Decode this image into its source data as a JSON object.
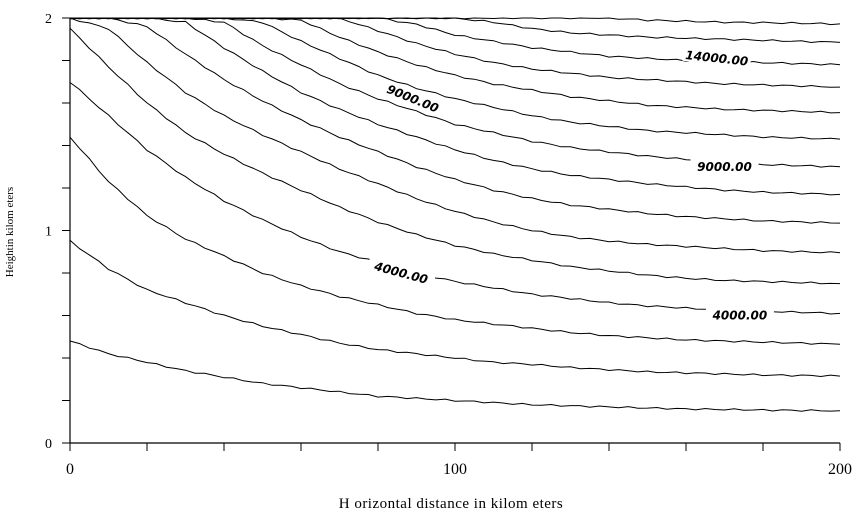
{
  "chart_data": {
    "type": "contour",
    "title": "",
    "xlabel": "H orizontal distance in kilom eters",
    "ylabel": "Heightin kilom eters",
    "xlim": [
      0,
      200
    ],
    "ylim": [
      0,
      2
    ],
    "x_tick_labels": [
      {
        "value": 0,
        "label": "0"
      },
      {
        "value": 100,
        "label": "100"
      },
      {
        "value": 200,
        "label": "200"
      }
    ],
    "y_tick_labels": [
      {
        "value": 0,
        "label": "0"
      },
      {
        "value": 1,
        "label": "1"
      },
      {
        "value": 2,
        "label": "2"
      }
    ],
    "x_minor_step": 20,
    "y_minor_step": 0.2,
    "grid": false,
    "contour_x": [
      0,
      10,
      20,
      30,
      40,
      50,
      60,
      70,
      80,
      90,
      100,
      110,
      120,
      130,
      140,
      150,
      160,
      170,
      180,
      190,
      200
    ],
    "contours": [
      {
        "y": [
          0.48,
          0.42,
          0.38,
          0.34,
          0.31,
          0.28,
          0.26,
          0.24,
          0.22,
          0.21,
          0.2,
          0.19,
          0.18,
          0.175,
          0.17,
          0.165,
          0.16,
          0.158,
          0.155,
          0.153,
          0.152
        ]
      },
      {
        "y": [
          0.95,
          0.82,
          0.72,
          0.66,
          0.6,
          0.55,
          0.51,
          0.47,
          0.44,
          0.42,
          0.4,
          0.38,
          0.37,
          0.355,
          0.345,
          0.335,
          0.33,
          0.325,
          0.32,
          0.318,
          0.315
        ]
      },
      {
        "y": [
          1.44,
          1.23,
          1.07,
          0.96,
          0.88,
          0.8,
          0.74,
          0.69,
          0.65,
          0.61,
          0.58,
          0.56,
          0.54,
          0.52,
          0.505,
          0.495,
          0.485,
          0.48,
          0.475,
          0.47,
          0.465
        ]
      },
      {
        "y": [
          1.7,
          1.54,
          1.38,
          1.25,
          1.14,
          1.05,
          0.97,
          0.9,
          0.85,
          0.8,
          0.76,
          0.73,
          0.7,
          0.68,
          0.66,
          0.645,
          0.635,
          0.625,
          0.62,
          0.615,
          0.61
        ]
      },
      {
        "y": [
          1.95,
          1.77,
          1.6,
          1.46,
          1.36,
          1.27,
          1.19,
          1.11,
          1.04,
          0.98,
          0.93,
          0.89,
          0.86,
          0.83,
          0.81,
          0.79,
          0.775,
          0.765,
          0.76,
          0.755,
          0.75
        ]
      },
      {
        "y": [
          2.0,
          1.95,
          1.79,
          1.65,
          1.54,
          1.45,
          1.37,
          1.29,
          1.22,
          1.15,
          1.09,
          1.04,
          1.0,
          0.97,
          0.95,
          0.935,
          0.925,
          0.915,
          0.905,
          0.9,
          0.895
        ]
      },
      {
        "y": [
          2.0,
          2.0,
          1.96,
          1.83,
          1.71,
          1.61,
          1.52,
          1.44,
          1.37,
          1.3,
          1.24,
          1.19,
          1.15,
          1.12,
          1.1,
          1.08,
          1.065,
          1.055,
          1.045,
          1.04,
          1.035
        ]
      },
      {
        "y": [
          2.0,
          2.0,
          2.0,
          1.98,
          1.86,
          1.75,
          1.65,
          1.57,
          1.5,
          1.44,
          1.38,
          1.33,
          1.29,
          1.26,
          1.24,
          1.22,
          1.205,
          1.19,
          1.18,
          1.175,
          1.17
        ]
      },
      {
        "y": [
          2.0,
          2.0,
          2.0,
          2.0,
          1.98,
          1.87,
          1.78,
          1.69,
          1.62,
          1.56,
          1.5,
          1.46,
          1.42,
          1.39,
          1.37,
          1.35,
          1.335,
          1.32,
          1.31,
          1.305,
          1.3
        ]
      },
      {
        "y": [
          2.0,
          2.0,
          2.0,
          2.0,
          2.0,
          1.98,
          1.89,
          1.81,
          1.73,
          1.67,
          1.62,
          1.58,
          1.54,
          1.51,
          1.49,
          1.47,
          1.46,
          1.45,
          1.44,
          1.435,
          1.43
        ]
      },
      {
        "y": [
          2.0,
          2.0,
          2.0,
          2.0,
          2.0,
          2.0,
          1.99,
          1.91,
          1.84,
          1.78,
          1.73,
          1.69,
          1.66,
          1.63,
          1.61,
          1.59,
          1.58,
          1.57,
          1.565,
          1.56,
          1.555
        ]
      },
      {
        "y": [
          2.0,
          2.0,
          2.0,
          2.0,
          2.0,
          2.0,
          2.0,
          2.0,
          1.94,
          1.88,
          1.83,
          1.79,
          1.76,
          1.74,
          1.72,
          1.71,
          1.7,
          1.69,
          1.685,
          1.68,
          1.675
        ]
      },
      {
        "y": [
          2.0,
          2.0,
          2.0,
          2.0,
          2.0,
          2.0,
          2.0,
          2.0,
          2.0,
          1.97,
          1.92,
          1.89,
          1.86,
          1.84,
          1.82,
          1.81,
          1.8,
          1.795,
          1.79,
          1.785,
          1.78
        ]
      },
      {
        "y": [
          2.0,
          2.0,
          2.0,
          2.0,
          2.0,
          2.0,
          2.0,
          2.0,
          2.0,
          2.0,
          2.0,
          1.98,
          1.95,
          1.93,
          1.92,
          1.91,
          1.905,
          1.9,
          1.895,
          1.89,
          1.885
        ]
      },
      {
        "y": [
          2.0,
          2.0,
          2.0,
          2.0,
          2.0,
          2.0,
          2.0,
          2.0,
          2.0,
          2.0,
          2.0,
          2.0,
          2.0,
          2.0,
          2.0,
          1.99,
          1.985,
          1.98,
          1.978,
          1.975,
          1.972
        ]
      }
    ],
    "contour_labels": [
      {
        "text": "14000.00",
        "x": 168,
        "y": 1.81,
        "rotate": 6
      },
      {
        "text": "9000.00",
        "x": 89,
        "y": 1.62,
        "rotate": 22
      },
      {
        "text": "9000.00",
        "x": 170,
        "y": 1.3,
        "rotate": 0
      },
      {
        "text": "4000.00",
        "x": 86,
        "y": 0.8,
        "rotate": 15
      },
      {
        "text": "4000.00",
        "x": 174,
        "y": 0.6,
        "rotate": 0
      }
    ]
  }
}
